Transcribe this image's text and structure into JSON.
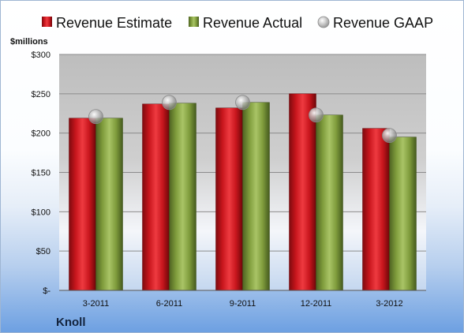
{
  "colors": {
    "estimate": "#c8161d",
    "actual": "#7f9c3c",
    "gaap": "#a0a0a0"
  },
  "chart_data": {
    "type": "bar",
    "ylabel": "$millions",
    "company": "Knoll",
    "categories": [
      "3-2011",
      "6-2011",
      "9-2011",
      "12-2011",
      "3-2012"
    ],
    "series": [
      {
        "name": "Revenue Estimate",
        "kind": "bar",
        "values": [
          219,
          237,
          232,
          250,
          206
        ]
      },
      {
        "name": "Revenue Actual",
        "kind": "bar",
        "values": [
          219,
          238,
          239,
          223,
          195
        ]
      },
      {
        "name": "Revenue GAAP",
        "kind": "marker",
        "values": [
          221,
          239,
          239,
          223,
          197
        ]
      }
    ],
    "ylim": [
      0,
      300
    ],
    "yticks": [
      0,
      50,
      100,
      150,
      200,
      250,
      300
    ],
    "ytick_labels": [
      "$-",
      "$50",
      "$100",
      "$150",
      "$200",
      "$250",
      "$300"
    ],
    "grid": true,
    "legend_position": "top"
  }
}
